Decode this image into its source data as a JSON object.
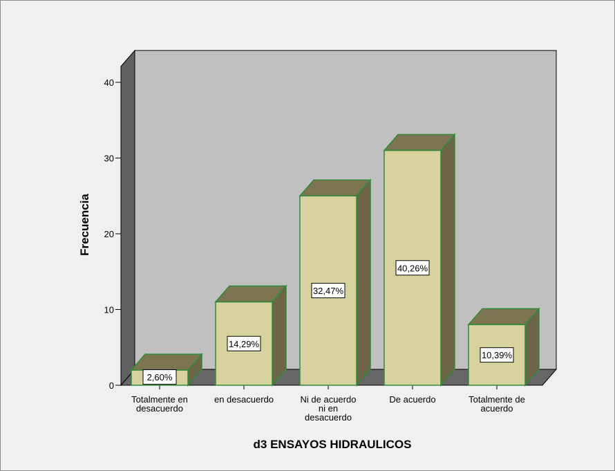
{
  "chart_data": {
    "type": "bar",
    "style": "3d",
    "title": "",
    "xlabel": "d3 ENSAYOS HIDRAULICOS",
    "ylabel": "Frecuencia",
    "ylim": [
      0,
      43
    ],
    "yticks": [
      "0",
      "10",
      "20",
      "30",
      "40"
    ],
    "grid": false,
    "legend": "none",
    "categories": [
      [
        "Totalmente en",
        "desacuerdo"
      ],
      [
        "en desacuerdo"
      ],
      [
        "Ni de acuerdo",
        "ni en",
        "desacuerdo"
      ],
      [
        "De acuerdo"
      ],
      [
        "Totalmente de",
        "acuerdo"
      ]
    ],
    "values": [
      2,
      11,
      25,
      31,
      8
    ],
    "data_labels": [
      "2,60%",
      "14,29%",
      "32,47%",
      "40,26%",
      "10,39%"
    ],
    "colors": {
      "bar_front": "#d8d29e",
      "bar_top": "#7d7452",
      "bar_side": "#6d6548",
      "bar_edge": "#2f8a3a",
      "wall": "#c0c0c0",
      "side_wall": "#616161",
      "floor": "#666666",
      "background": "#f0f0f0"
    }
  }
}
